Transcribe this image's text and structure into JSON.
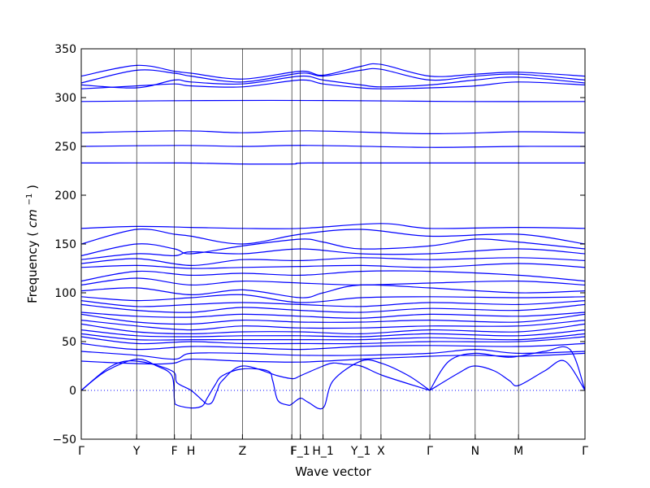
{
  "chart_data": {
    "type": "line",
    "title": "",
    "xlabel": "Wave vector",
    "ylabel": "Frequency",
    "ylabel_unit_math": "cm",
    "ylabel_unit_exponent": "−1",
    "ylim": [
      -50,
      350
    ],
    "yticks": [
      -50,
      0,
      50,
      100,
      150,
      200,
      250,
      300,
      350
    ],
    "xlim": [
      0,
      1
    ],
    "high_symmetry_points": [
      {
        "label": "Γ",
        "x": 0.0
      },
      {
        "label": "Y",
        "x": 0.11
      },
      {
        "label": "F",
        "x": 0.185
      },
      {
        "label": "H",
        "x": 0.218
      },
      {
        "label": "Z",
        "x": 0.32
      },
      {
        "label": "I",
        "x": 0.418
      },
      {
        "label": "F_1",
        "x": 0.435
      },
      {
        "label": "H_1",
        "x": 0.48
      },
      {
        "label": "Y_1",
        "x": 0.555
      },
      {
        "label": "X",
        "x": 0.595
      },
      {
        "label": "Γ",
        "x": 0.692
      },
      {
        "label": "N",
        "x": 0.782
      },
      {
        "label": "M",
        "x": 0.868
      },
      {
        "label": "Γ",
        "x": 1.0
      }
    ],
    "zero_line": 0,
    "line_color": "#0000ff",
    "zero_line_color": "#0000ff",
    "grid": false,
    "bands": [
      {
        "x": [
          0,
          0.11,
          0.185,
          0.218,
          0.32,
          0.435,
          0.48,
          0.555,
          0.595,
          0.692,
          0.782,
          0.868,
          1.0
        ],
        "y": [
          322,
          333,
          327,
          325,
          319,
          327,
          323,
          332,
          334,
          322,
          324,
          326,
          322
        ]
      },
      {
        "x": [
          0,
          0.11,
          0.185,
          0.218,
          0.32,
          0.435,
          0.48,
          0.555,
          0.595,
          0.692,
          0.782,
          0.868,
          1.0
        ],
        "y": [
          315,
          328,
          325,
          322,
          316,
          325,
          322,
          328,
          329,
          318,
          322,
          324,
          318
        ]
      },
      {
        "x": [
          0,
          0.11,
          0.185,
          0.218,
          0.32,
          0.435,
          0.48,
          0.555,
          0.595,
          0.692,
          0.782,
          0.868,
          1.0
        ],
        "y": [
          313,
          310,
          318,
          316,
          314,
          322,
          318,
          313,
          311,
          313,
          318,
          321,
          315
        ]
      },
      {
        "x": [
          0,
          0.11,
          0.185,
          0.218,
          0.32,
          0.435,
          0.48,
          0.555,
          0.595,
          0.692,
          0.782,
          0.868,
          1.0
        ],
        "y": [
          309,
          312,
          314,
          312,
          311,
          318,
          314,
          310,
          309,
          310,
          312,
          316,
          313
        ]
      },
      {
        "x": [
          0,
          0.25,
          0.5,
          0.75,
          1.0
        ],
        "y": [
          296,
          297,
          297,
          296,
          296
        ]
      },
      {
        "x": [
          0,
          0.2,
          0.32,
          0.45,
          0.692,
          0.87,
          1.0
        ],
        "y": [
          264,
          266,
          264,
          266,
          263,
          265,
          264
        ]
      },
      {
        "x": [
          0,
          0.2,
          0.32,
          0.45,
          0.692,
          0.87,
          1.0
        ],
        "y": [
          250,
          251,
          250,
          251,
          249,
          250,
          250
        ]
      },
      {
        "x": [
          0,
          0.2,
          0.32,
          0.42,
          0.45,
          0.692,
          1.0
        ],
        "y": [
          233,
          233,
          232,
          232,
          233,
          233,
          233
        ]
      },
      {
        "x": [
          0,
          0.11,
          0.218,
          0.32,
          0.435,
          0.595,
          0.692,
          0.868,
          1.0
        ],
        "y": [
          166,
          168,
          167,
          166,
          166,
          171,
          166,
          167,
          166
        ]
      },
      {
        "x": [
          0,
          0.11,
          0.185,
          0.218,
          0.32,
          0.435,
          0.555,
          0.692,
          0.868,
          1.0
        ],
        "y": [
          150,
          165,
          160,
          158,
          150,
          160,
          165,
          158,
          160,
          150
        ]
      },
      {
        "x": [
          0,
          0.11,
          0.185,
          0.218,
          0.32,
          0.435,
          0.48,
          0.555,
          0.692,
          0.782,
          0.868,
          1.0
        ],
        "y": [
          138,
          150,
          145,
          140,
          148,
          155,
          152,
          145,
          148,
          155,
          152,
          145
        ]
      },
      {
        "x": [
          0,
          0.11,
          0.185,
          0.218,
          0.32,
          0.435,
          0.555,
          0.692,
          0.868,
          1.0
        ],
        "y": [
          134,
          140,
          138,
          142,
          140,
          145,
          140,
          140,
          145,
          140
        ]
      },
      {
        "x": [
          0,
          0.11,
          0.218,
          0.32,
          0.435,
          0.555,
          0.692,
          0.868,
          1.0
        ],
        "y": [
          130,
          135,
          128,
          134,
          133,
          136,
          134,
          136,
          133
        ]
      },
      {
        "x": [
          0,
          0.11,
          0.218,
          0.32,
          0.435,
          0.555,
          0.692,
          0.868,
          1.0
        ],
        "y": [
          126,
          128,
          125,
          126,
          127,
          128,
          126,
          130,
          126
        ]
      },
      {
        "x": [
          0,
          0.11,
          0.218,
          0.32,
          0.435,
          0.555,
          0.692,
          0.868,
          1.0
        ],
        "y": [
          112,
          122,
          118,
          120,
          118,
          122,
          122,
          118,
          112
        ]
      },
      {
        "x": [
          0,
          0.11,
          0.218,
          0.32,
          0.435,
          0.555,
          0.692,
          0.868,
          1.0
        ],
        "y": [
          108,
          115,
          108,
          112,
          110,
          108,
          110,
          112,
          108
        ]
      },
      {
        "x": [
          0,
          0.11,
          0.218,
          0.32,
          0.435,
          0.48,
          0.555,
          0.692,
          0.868,
          1.0
        ],
        "y": [
          102,
          105,
          98,
          103,
          95,
          100,
          108,
          105,
          100,
          102
        ]
      },
      {
        "x": [
          0,
          0.11,
          0.218,
          0.32,
          0.435,
          0.555,
          0.692,
          0.868,
          1.0
        ],
        "y": [
          96,
          92,
          95,
          98,
          90,
          95,
          96,
          95,
          96
        ]
      },
      {
        "x": [
          0,
          0.11,
          0.218,
          0.32,
          0.435,
          0.555,
          0.692,
          0.868,
          1.0
        ],
        "y": [
          92,
          86,
          88,
          90,
          88,
          86,
          90,
          88,
          92
        ]
      },
      {
        "x": [
          0,
          0.11,
          0.218,
          0.32,
          0.435,
          0.555,
          0.692,
          0.868,
          1.0
        ],
        "y": [
          88,
          82,
          80,
          85,
          82,
          80,
          84,
          82,
          88
        ]
      },
      {
        "x": [
          0,
          0.11,
          0.218,
          0.32,
          0.435,
          0.555,
          0.692,
          0.868,
          1.0
        ],
        "y": [
          80,
          76,
          75,
          78,
          76,
          74,
          78,
          76,
          80
        ]
      },
      {
        "x": [
          0,
          0.11,
          0.218,
          0.32,
          0.435,
          0.555,
          0.692,
          0.868,
          1.0
        ],
        "y": [
          78,
          70,
          68,
          72,
          70,
          70,
          72,
          70,
          78
        ]
      },
      {
        "x": [
          0,
          0.11,
          0.218,
          0.32,
          0.435,
          0.555,
          0.692,
          0.868,
          1.0
        ],
        "y": [
          72,
          66,
          62,
          66,
          64,
          64,
          66,
          66,
          72
        ]
      },
      {
        "x": [
          0,
          0.11,
          0.218,
          0.32,
          0.435,
          0.555,
          0.692,
          0.868,
          1.0
        ],
        "y": [
          68,
          60,
          58,
          60,
          60,
          58,
          62,
          60,
          68
        ]
      },
      {
        "x": [
          0,
          0.11,
          0.218,
          0.32,
          0.435,
          0.555,
          0.692,
          0.868,
          1.0
        ],
        "y": [
          62,
          56,
          55,
          56,
          56,
          55,
          58,
          56,
          62
        ]
      },
      {
        "x": [
          0,
          0.11,
          0.218,
          0.32,
          0.435,
          0.555,
          0.692,
          0.868,
          1.0
        ],
        "y": [
          58,
          52,
          52,
          52,
          52,
          52,
          54,
          52,
          58
        ]
      },
      {
        "x": [
          0,
          0.11,
          0.218,
          0.32,
          0.435,
          0.555,
          0.692,
          0.868,
          1.0
        ],
        "y": [
          55,
          48,
          50,
          48,
          48,
          48,
          50,
          50,
          55
        ]
      },
      {
        "x": [
          0,
          0.11,
          0.218,
          0.32,
          0.435,
          0.555,
          0.692,
          0.868,
          1.0
        ],
        "y": [
          48,
          42,
          45,
          44,
          42,
          45,
          46,
          45,
          48
        ]
      },
      {
        "x": [
          0,
          0.11,
          0.185,
          0.218,
          0.32,
          0.435,
          0.555,
          0.692,
          0.782,
          0.868,
          1.0
        ],
        "y": [
          40,
          36,
          32,
          38,
          38,
          36,
          36,
          38,
          42,
          38,
          40
        ]
      },
      {
        "x": [
          0,
          0.08,
          0.15,
          0.185,
          0.218,
          0.32,
          0.435,
          0.555,
          0.692,
          0.782,
          0.868,
          1.0
        ],
        "y": [
          30,
          28,
          27,
          28,
          32,
          30,
          29,
          32,
          35,
          36,
          35,
          38
        ]
      },
      {
        "x": [
          0,
          0.05,
          0.11,
          0.15,
          0.18,
          0.185,
          0.19,
          0.218,
          0.24,
          0.25,
          0.265,
          0.28,
          0.32,
          0.37,
          0.38,
          0.39,
          0.41,
          0.418,
          0.435,
          0.45,
          0.48,
          0.5,
          0.555,
          0.595,
          0.65,
          0.692
        ],
        "y": [
          0,
          20,
          32,
          25,
          15,
          -10,
          -15,
          -18,
          -16,
          -8,
          5,
          15,
          22,
          20,
          10,
          -10,
          -15,
          -14,
          -8,
          -12,
          -18,
          10,
          30,
          28,
          15,
          0
        ]
      },
      {
        "x": [
          0,
          0.06,
          0.11,
          0.18,
          0.19,
          0.218,
          0.24,
          0.25,
          0.26,
          0.27,
          0.28,
          0.32,
          0.39,
          0.42,
          0.435,
          0.48,
          0.5,
          0.52,
          0.555,
          0.6,
          0.692
        ],
        "y": [
          0,
          25,
          30,
          20,
          8,
          0,
          -10,
          -14,
          -12,
          0,
          10,
          25,
          15,
          12,
          15,
          25,
          28,
          27,
          25,
          15,
          0
        ]
      },
      {
        "x": [
          0.692,
          0.75,
          0.78,
          0.82,
          0.85,
          0.868,
          0.92,
          0.96,
          1.0
        ],
        "y": [
          0,
          18,
          25,
          20,
          10,
          5,
          20,
          30,
          0
        ]
      },
      {
        "x": [
          0.692,
          0.73,
          0.782,
          0.85,
          0.92,
          0.97,
          1.0
        ],
        "y": [
          0,
          30,
          38,
          34,
          40,
          42,
          0
        ]
      }
    ]
  }
}
